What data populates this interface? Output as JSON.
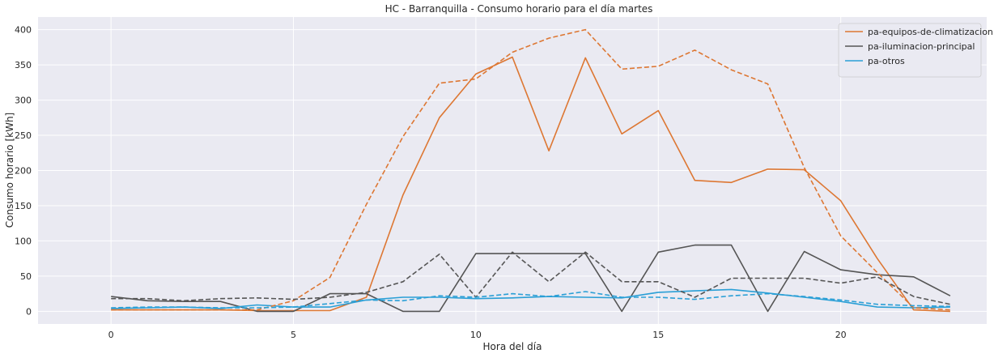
{
  "chart_data": {
    "type": "line",
    "title": "HC - Barranquilla - Consumo horario para el día martes",
    "xlabel": "Hora del día",
    "ylabel": "Consumo horario [kWh]",
    "xlim": [
      -2,
      24
    ],
    "ylim": [
      -18,
      418
    ],
    "xticks": [
      0,
      5,
      10,
      15,
      20
    ],
    "yticks": [
      0,
      50,
      100,
      150,
      200,
      250,
      300,
      350,
      400
    ],
    "grid": true,
    "background": "#eaeaf2",
    "legend_position": "top-right",
    "x": [
      0,
      1,
      2,
      3,
      4,
      5,
      6,
      7,
      8,
      9,
      10,
      11,
      12,
      13,
      14,
      15,
      16,
      17,
      18,
      19,
      20,
      21,
      22,
      23
    ],
    "series": [
      {
        "name": "pa-equipos-de-climatizacion",
        "color": "#dd7733",
        "style": "solid",
        "values": [
          2,
          2,
          2,
          2,
          1,
          1,
          1,
          20,
          165,
          275,
          337,
          361,
          228,
          360,
          252,
          285,
          186,
          183,
          202,
          201,
          157,
          75,
          2,
          0
        ]
      },
      {
        "name": "pa-iluminacion-principal",
        "color": "#555555",
        "style": "solid",
        "values": [
          21,
          15,
          14,
          14,
          0,
          0,
          25,
          25,
          0,
          0,
          82,
          82,
          82,
          82,
          0,
          84,
          94,
          94,
          0,
          85,
          59,
          52,
          49,
          22
        ]
      },
      {
        "name": "pa-otros",
        "color": "#2a9fd6",
        "style": "solid",
        "values": [
          4,
          5,
          6,
          4,
          9,
          6,
          6,
          16,
          20,
          20,
          18,
          19,
          21,
          20,
          19,
          27,
          29,
          31,
          26,
          20,
          14,
          6,
          5,
          6
        ]
      },
      {
        "name": "",
        "color": "#dd7733",
        "style": "dashed",
        "values": [
          2,
          2,
          2,
          2,
          2,
          15,
          48,
          152,
          248,
          324,
          330,
          368,
          388,
          400,
          344,
          348,
          371,
          343,
          323,
          204,
          107,
          55,
          5,
          2
        ]
      },
      {
        "name": "",
        "color": "#555555",
        "style": "dashed",
        "values": [
          18,
          18,
          15,
          18,
          19,
          17,
          20,
          27,
          42,
          81,
          20,
          84,
          42,
          84,
          42,
          42,
          20,
          47,
          47,
          47,
          40,
          49,
          21,
          10
        ]
      },
      {
        "name": "",
        "color": "#2a9fd6",
        "style": "dashed",
        "values": [
          5,
          6,
          6,
          5,
          5,
          6,
          11,
          16,
          15,
          22,
          20,
          25,
          21,
          28,
          20,
          20,
          17,
          22,
          25,
          21,
          16,
          10,
          8,
          7
        ]
      }
    ]
  }
}
